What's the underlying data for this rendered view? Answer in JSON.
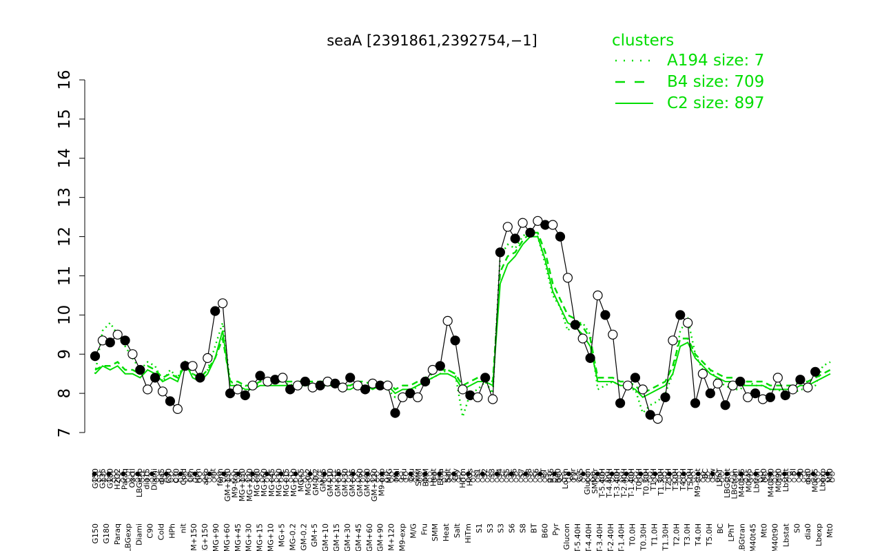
{
  "chart_data": {
    "type": "line",
    "title": "seaA [2391861,2392754,−1]",
    "ylim": [
      7,
      16
    ],
    "y_ticks": [
      "7",
      "8",
      "9",
      "10",
      "11",
      "12",
      "13",
      "14",
      "15",
      "16"
    ],
    "legend": {
      "title": "clusters",
      "placement": "top-right",
      "entries": [
        {
          "label": "A194 size: 7",
          "style": "dotted"
        },
        {
          "label": "B4 size: 709",
          "style": "dashed"
        },
        {
          "label": "C2 size: 897",
          "style": "solid"
        }
      ]
    },
    "colors": {
      "cluster_lines": "#00dd00",
      "points_open": "#ffffff",
      "points_filled": "#000000",
      "axis": "#000000"
    },
    "x_labels_top": [
      "G150",
      "G135",
      "G180",
      "H2O2",
      "Paraq",
      "Oxctl",
      "LBGexp",
      "dia15",
      "Diami",
      "dia5",
      "C90",
      "C30",
      "Cold",
      "LPh",
      "HPh",
      "aero",
      "nit",
      "ferm",
      "GM+150",
      "M9-tran",
      "MG+150",
      "MG+120",
      "MG+90",
      "MG+60",
      "MG+45",
      "MG+30",
      "MG+15",
      "MG+10",
      "MG+5",
      "MG-0.2",
      "GM-0.2",
      "GM+5",
      "GM+10",
      "GM+15",
      "GM+30",
      "GM+45",
      "GM+60",
      "GM+90",
      "GM+120",
      "M9-exp",
      "M/G",
      "Mal",
      "Fru",
      "Glu",
      "SMM",
      "BMM",
      "Heat",
      "Etha",
      "Salt",
      "Gly",
      "HiTm",
      "HiOs",
      "S1",
      "S2",
      "S3",
      "S4",
      "S5",
      "S6",
      "S7",
      "S8",
      "S6",
      "BT",
      "B36",
      "B60",
      "LoTm",
      "Pyr",
      "G/S",
      "Glucon",
      "SMMPr",
      "T-5.40H",
      "T-4.40H",
      "T-3.40H",
      "T-2.40H",
      "T-1.40H",
      "T0.0H",
      "T0.30H",
      "T1.0H",
      "T1.30H",
      "T2.0H",
      "T3.0H",
      "T4.0H",
      "T5.0H",
      "M9-stat",
      "BC",
      "Sw",
      "LPhT",
      "LBGstat",
      "LBGtran",
      "M40t45",
      "M0t45",
      "Lbtran",
      "Mt0",
      "M40t90",
      "M0t90",
      "Lbstat",
      "BI",
      "S0",
      "dia0",
      "M0t45",
      "Lbexp",
      "Mt0"
    ],
    "x_labels_bottom": [
      "G150",
      "G180",
      "Paraq",
      "LBGexp",
      "Diami",
      "C90",
      "Cold",
      "HPh",
      "nit",
      "GM+150",
      "MG+150",
      "MG+90",
      "MG+60",
      "MG+45",
      "MG+30",
      "MG+15",
      "MG+10",
      "MG+5",
      "MG-0.2",
      "GM-0.2",
      "GM+5",
      "GM+10",
      "GM+15",
      "GM+30",
      "GM+45",
      "GM+60",
      "GM+90",
      "GM+120",
      "M9-exp",
      "M/G",
      "Fru",
      "SMM",
      "Heat",
      "Salt",
      "HiTm",
      "S1",
      "S3",
      "S3",
      "S6",
      "S8",
      "BT",
      "B60",
      "Pyr",
      "Glucon",
      "T-5.40H",
      "T-4.40H",
      "T-3.40H",
      "T-2.40H",
      "T-1.40H",
      "T0.0H",
      "T0.30H",
      "T1.0H",
      "T1.30H",
      "T2.0H",
      "T3.0H",
      "T4.0H",
      "T5.0H",
      "BC",
      "LPhT",
      "LBGtran",
      "M40t45",
      "Mt0",
      "M40t90",
      "Lbstat",
      "S0",
      "dia0",
      "Lbexp",
      "Mt0"
    ],
    "series": [
      {
        "name": "A194 size: 7",
        "style": "dotted",
        "values": [
          8.5,
          9.6,
          9.8,
          9.5,
          9.2,
          8.9,
          8.6,
          8.8,
          8.7,
          8.3,
          8.6,
          8.4,
          8.8,
          8.5,
          8.4,
          8.6,
          9.2,
          9.8,
          8.3,
          8.2,
          8.2,
          8.1,
          8.3,
          8.4,
          8.3,
          8.3,
          8.2,
          8.3,
          8.3,
          8.2,
          8.2,
          8.2,
          8.3,
          8.2,
          8.2,
          8.2,
          8.2,
          8.2,
          8.2,
          8.1,
          7.9,
          8.0,
          8.0,
          8.2,
          8.3,
          8.4,
          8.5,
          8.6,
          8.5,
          7.4,
          8.0,
          8.1,
          8.3,
          8.0,
          11.5,
          11.8,
          11.7,
          12.0,
          12.2,
          12.0,
          11.3,
          10.5,
          10.2,
          9.6,
          9.8,
          9.8,
          9.5,
          8.1,
          8.2,
          8.3,
          8.2,
          8.1,
          8.1,
          7.5,
          7.7,
          7.8,
          8.0,
          8.5,
          9.6,
          9.9,
          9.0,
          8.6,
          8.6,
          8.3,
          8.2,
          8.1,
          8.1,
          8.3,
          8.2,
          8.2,
          8.1,
          8.1,
          8.0,
          8.0,
          8.1,
          8.1,
          8.2,
          8.7,
          8.8
        ]
      },
      {
        "name": "B4 size: 709",
        "style": "dashed",
        "values": [
          8.6,
          8.7,
          8.7,
          8.8,
          8.6,
          8.6,
          8.5,
          8.7,
          8.6,
          8.4,
          8.5,
          8.4,
          8.7,
          8.5,
          8.4,
          8.6,
          8.9,
          9.4,
          8.3,
          8.3,
          8.2,
          8.2,
          8.3,
          8.3,
          8.3,
          8.3,
          8.3,
          8.3,
          8.3,
          8.3,
          8.3,
          8.3,
          8.3,
          8.2,
          8.2,
          8.3,
          8.3,
          8.2,
          8.3,
          8.3,
          8.1,
          8.2,
          8.2,
          8.3,
          8.4,
          8.5,
          8.6,
          8.6,
          8.5,
          8.2,
          8.3,
          8.4,
          8.4,
          8.3,
          11.1,
          11.5,
          11.6,
          11.9,
          12.1,
          12.1,
          11.6,
          10.8,
          10.4,
          10.0,
          9.9,
          9.7,
          9.4,
          8.4,
          8.4,
          8.4,
          8.3,
          8.3,
          8.2,
          8.0,
          8.1,
          8.2,
          8.3,
          8.7,
          9.4,
          9.4,
          9.0,
          8.8,
          8.6,
          8.5,
          8.4,
          8.4,
          8.3,
          8.3,
          8.3,
          8.3,
          8.2,
          8.2,
          8.2,
          8.2,
          8.3,
          8.3,
          8.4,
          8.5,
          8.6
        ]
      },
      {
        "name": "C2 size: 897",
        "style": "solid",
        "values": [
          8.5,
          8.7,
          8.6,
          8.7,
          8.5,
          8.5,
          8.4,
          8.6,
          8.5,
          8.3,
          8.4,
          8.3,
          8.8,
          8.4,
          8.3,
          8.5,
          8.9,
          9.6,
          8.2,
          8.2,
          8.1,
          8.1,
          8.2,
          8.2,
          8.2,
          8.2,
          8.2,
          8.2,
          8.2,
          8.2,
          8.2,
          8.2,
          8.2,
          8.1,
          8.1,
          8.2,
          8.2,
          8.1,
          8.2,
          8.2,
          8.0,
          8.1,
          8.1,
          8.2,
          8.3,
          8.4,
          8.5,
          8.5,
          8.4,
          8.1,
          8.2,
          8.3,
          8.3,
          8.2,
          10.8,
          11.3,
          11.5,
          11.8,
          12.0,
          12.0,
          11.4,
          10.6,
          10.2,
          9.8,
          9.7,
          9.5,
          9.2,
          8.3,
          8.3,
          8.3,
          8.2,
          8.2,
          8.1,
          7.9,
          8.0,
          8.1,
          8.2,
          8.5,
          9.2,
          9.3,
          8.9,
          8.7,
          8.5,
          8.4,
          8.3,
          8.3,
          8.2,
          8.2,
          8.2,
          8.2,
          8.1,
          8.1,
          8.1,
          8.1,
          8.2,
          8.2,
          8.3,
          8.4,
          8.5
        ]
      }
    ],
    "points": [
      {
        "x": 0,
        "y": 8.95,
        "filled": true
      },
      {
        "x": 1,
        "y": 9.35,
        "filled": false
      },
      {
        "x": 2,
        "y": 9.3,
        "filled": true
      },
      {
        "x": 3,
        "y": 9.5,
        "filled": false
      },
      {
        "x": 4,
        "y": 9.35,
        "filled": true
      },
      {
        "x": 5,
        "y": 9.0,
        "filled": false
      },
      {
        "x": 6,
        "y": 8.6,
        "filled": true
      },
      {
        "x": 7,
        "y": 8.1,
        "filled": false
      },
      {
        "x": 8,
        "y": 8.4,
        "filled": true
      },
      {
        "x": 9,
        "y": 8.05,
        "filled": false
      },
      {
        "x": 10,
        "y": 7.8,
        "filled": true
      },
      {
        "x": 11,
        "y": 7.6,
        "filled": false
      },
      {
        "x": 12,
        "y": 8.7,
        "filled": true
      },
      {
        "x": 13,
        "y": 8.7,
        "filled": false
      },
      {
        "x": 14,
        "y": 8.4,
        "filled": true
      },
      {
        "x": 15,
        "y": 8.9,
        "filled": false
      },
      {
        "x": 16,
        "y": 10.1,
        "filled": true
      },
      {
        "x": 17,
        "y": 10.3,
        "filled": false
      },
      {
        "x": 18,
        "y": 8.0,
        "filled": true
      },
      {
        "x": 19,
        "y": 8.1,
        "filled": false
      },
      {
        "x": 20,
        "y": 7.95,
        "filled": true
      },
      {
        "x": 21,
        "y": 8.2,
        "filled": false
      },
      {
        "x": 22,
        "y": 8.45,
        "filled": true
      },
      {
        "x": 23,
        "y": 8.3,
        "filled": false
      },
      {
        "x": 24,
        "y": 8.35,
        "filled": true
      },
      {
        "x": 25,
        "y": 8.4,
        "filled": false
      },
      {
        "x": 26,
        "y": 8.1,
        "filled": true
      },
      {
        "x": 27,
        "y": 8.2,
        "filled": false
      },
      {
        "x": 28,
        "y": 8.3,
        "filled": true
      },
      {
        "x": 29,
        "y": 8.15,
        "filled": false
      },
      {
        "x": 30,
        "y": 8.2,
        "filled": true
      },
      {
        "x": 31,
        "y": 8.3,
        "filled": false
      },
      {
        "x": 32,
        "y": 8.25,
        "filled": true
      },
      {
        "x": 33,
        "y": 8.15,
        "filled": false
      },
      {
        "x": 34,
        "y": 8.4,
        "filled": true
      },
      {
        "x": 35,
        "y": 8.2,
        "filled": false
      },
      {
        "x": 36,
        "y": 8.1,
        "filled": true
      },
      {
        "x": 37,
        "y": 8.25,
        "filled": false
      },
      {
        "x": 38,
        "y": 8.2,
        "filled": true
      },
      {
        "x": 39,
        "y": 8.2,
        "filled": false
      },
      {
        "x": 40,
        "y": 7.5,
        "filled": true
      },
      {
        "x": 41,
        "y": 7.9,
        "filled": false
      },
      {
        "x": 42,
        "y": 8.0,
        "filled": true
      },
      {
        "x": 43,
        "y": 7.9,
        "filled": false
      },
      {
        "x": 44,
        "y": 8.3,
        "filled": true
      },
      {
        "x": 45,
        "y": 8.6,
        "filled": false
      },
      {
        "x": 46,
        "y": 8.7,
        "filled": true
      },
      {
        "x": 47,
        "y": 9.85,
        "filled": false
      },
      {
        "x": 48,
        "y": 9.35,
        "filled": true
      },
      {
        "x": 49,
        "y": 8.1,
        "filled": false
      },
      {
        "x": 50,
        "y": 7.95,
        "filled": true
      },
      {
        "x": 51,
        "y": 7.9,
        "filled": false
      },
      {
        "x": 52,
        "y": 8.4,
        "filled": true
      },
      {
        "x": 53,
        "y": 7.85,
        "filled": false
      },
      {
        "x": 54,
        "y": 11.6,
        "filled": true
      },
      {
        "x": 55,
        "y": 12.25,
        "filled": false
      },
      {
        "x": 56,
        "y": 11.95,
        "filled": true
      },
      {
        "x": 57,
        "y": 12.35,
        "filled": false
      },
      {
        "x": 58,
        "y": 12.1,
        "filled": true
      },
      {
        "x": 59,
        "y": 12.4,
        "filled": false
      },
      {
        "x": 60,
        "y": 12.3,
        "filled": true
      },
      {
        "x": 61,
        "y": 12.3,
        "filled": false
      },
      {
        "x": 62,
        "y": 12.0,
        "filled": true
      },
      {
        "x": 63,
        "y": 10.95,
        "filled": false
      },
      {
        "x": 64,
        "y": 9.75,
        "filled": true
      },
      {
        "x": 65,
        "y": 9.4,
        "filled": false
      },
      {
        "x": 66,
        "y": 8.9,
        "filled": true
      },
      {
        "x": 67,
        "y": 10.5,
        "filled": false
      },
      {
        "x": 68,
        "y": 10.0,
        "filled": true
      },
      {
        "x": 69,
        "y": 9.5,
        "filled": false
      },
      {
        "x": 70,
        "y": 7.75,
        "filled": true
      },
      {
        "x": 71,
        "y": 8.2,
        "filled": false
      },
      {
        "x": 72,
        "y": 8.4,
        "filled": true
      },
      {
        "x": 73,
        "y": 8.1,
        "filled": false
      },
      {
        "x": 74,
        "y": 7.45,
        "filled": true
      },
      {
        "x": 75,
        "y": 7.35,
        "filled": false
      },
      {
        "x": 76,
        "y": 7.9,
        "filled": true
      },
      {
        "x": 77,
        "y": 9.35,
        "filled": false
      },
      {
        "x": 78,
        "y": 10.0,
        "filled": true
      },
      {
        "x": 79,
        "y": 9.8,
        "filled": false
      },
      {
        "x": 80,
        "y": 7.75,
        "filled": true
      },
      {
        "x": 81,
        "y": 8.5,
        "filled": false
      },
      {
        "x": 82,
        "y": 8.0,
        "filled": true
      },
      {
        "x": 83,
        "y": 8.25,
        "filled": false
      },
      {
        "x": 84,
        "y": 7.7,
        "filled": true
      },
      {
        "x": 85,
        "y": 8.2,
        "filled": false
      },
      {
        "x": 86,
        "y": 8.3,
        "filled": true
      },
      {
        "x": 87,
        "y": 7.9,
        "filled": false
      },
      {
        "x": 88,
        "y": 8.0,
        "filled": true
      },
      {
        "x": 89,
        "y": 7.85,
        "filled": false
      },
      {
        "x": 90,
        "y": 7.9,
        "filled": true
      },
      {
        "x": 91,
        "y": 8.4,
        "filled": false
      },
      {
        "x": 92,
        "y": 7.95,
        "filled": true
      },
      {
        "x": 93,
        "y": 8.1,
        "filled": false
      },
      {
        "x": 94,
        "y": 8.35,
        "filled": true
      },
      {
        "x": 95,
        "y": 8.15,
        "filled": false
      },
      {
        "x": 96,
        "y": 8.55,
        "filled": true
      }
    ]
  }
}
